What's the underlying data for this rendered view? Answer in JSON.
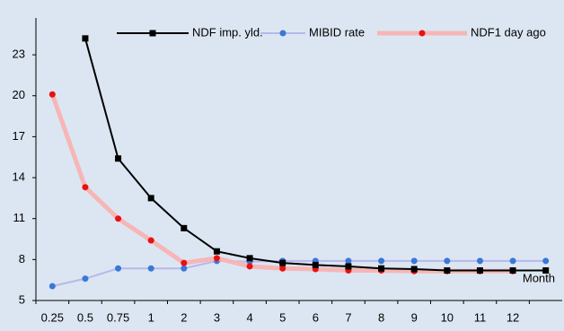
{
  "chart_data": {
    "type": "line",
    "x_label": "Month",
    "categories": [
      "0.25",
      "0.5",
      "0.75",
      "1",
      "2",
      "3",
      "4",
      "5",
      "6",
      "7",
      "8",
      "9",
      "10",
      "11",
      "12",
      null
    ],
    "series": [
      {
        "name": "NDF imp. yld.",
        "color": "#000000",
        "marker": "square",
        "values": [
          null,
          24.2,
          15.4,
          12.5,
          10.3,
          8.6,
          8.1,
          7.75,
          7.6,
          7.5,
          7.35,
          7.3,
          7.2,
          7.2,
          7.2,
          7.2
        ]
      },
      {
        "name": "MIBID rate",
        "color": "#3a78d8",
        "line_color": "#b8b8ea",
        "marker": "circle",
        "values": [
          6.05,
          6.6,
          7.35,
          7.35,
          7.35,
          7.9,
          7.85,
          7.9,
          7.9,
          7.9,
          7.9,
          7.9,
          7.9,
          7.9,
          7.9,
          7.9
        ]
      },
      {
        "name": "NDF1 day ago",
        "color": "#e81010",
        "line_color": "#f6b6b6",
        "marker": "circle",
        "values": [
          20.1,
          13.3,
          11.0,
          9.4,
          7.75,
          8.1,
          7.5,
          7.35,
          7.3,
          7.2,
          7.2,
          7.15,
          7.15,
          7.15,
          7.15,
          null
        ]
      }
    ],
    "ylim": [
      5,
      25.7
    ],
    "yticks": [
      5,
      8,
      11,
      14,
      17,
      20,
      23
    ],
    "grid": false
  }
}
